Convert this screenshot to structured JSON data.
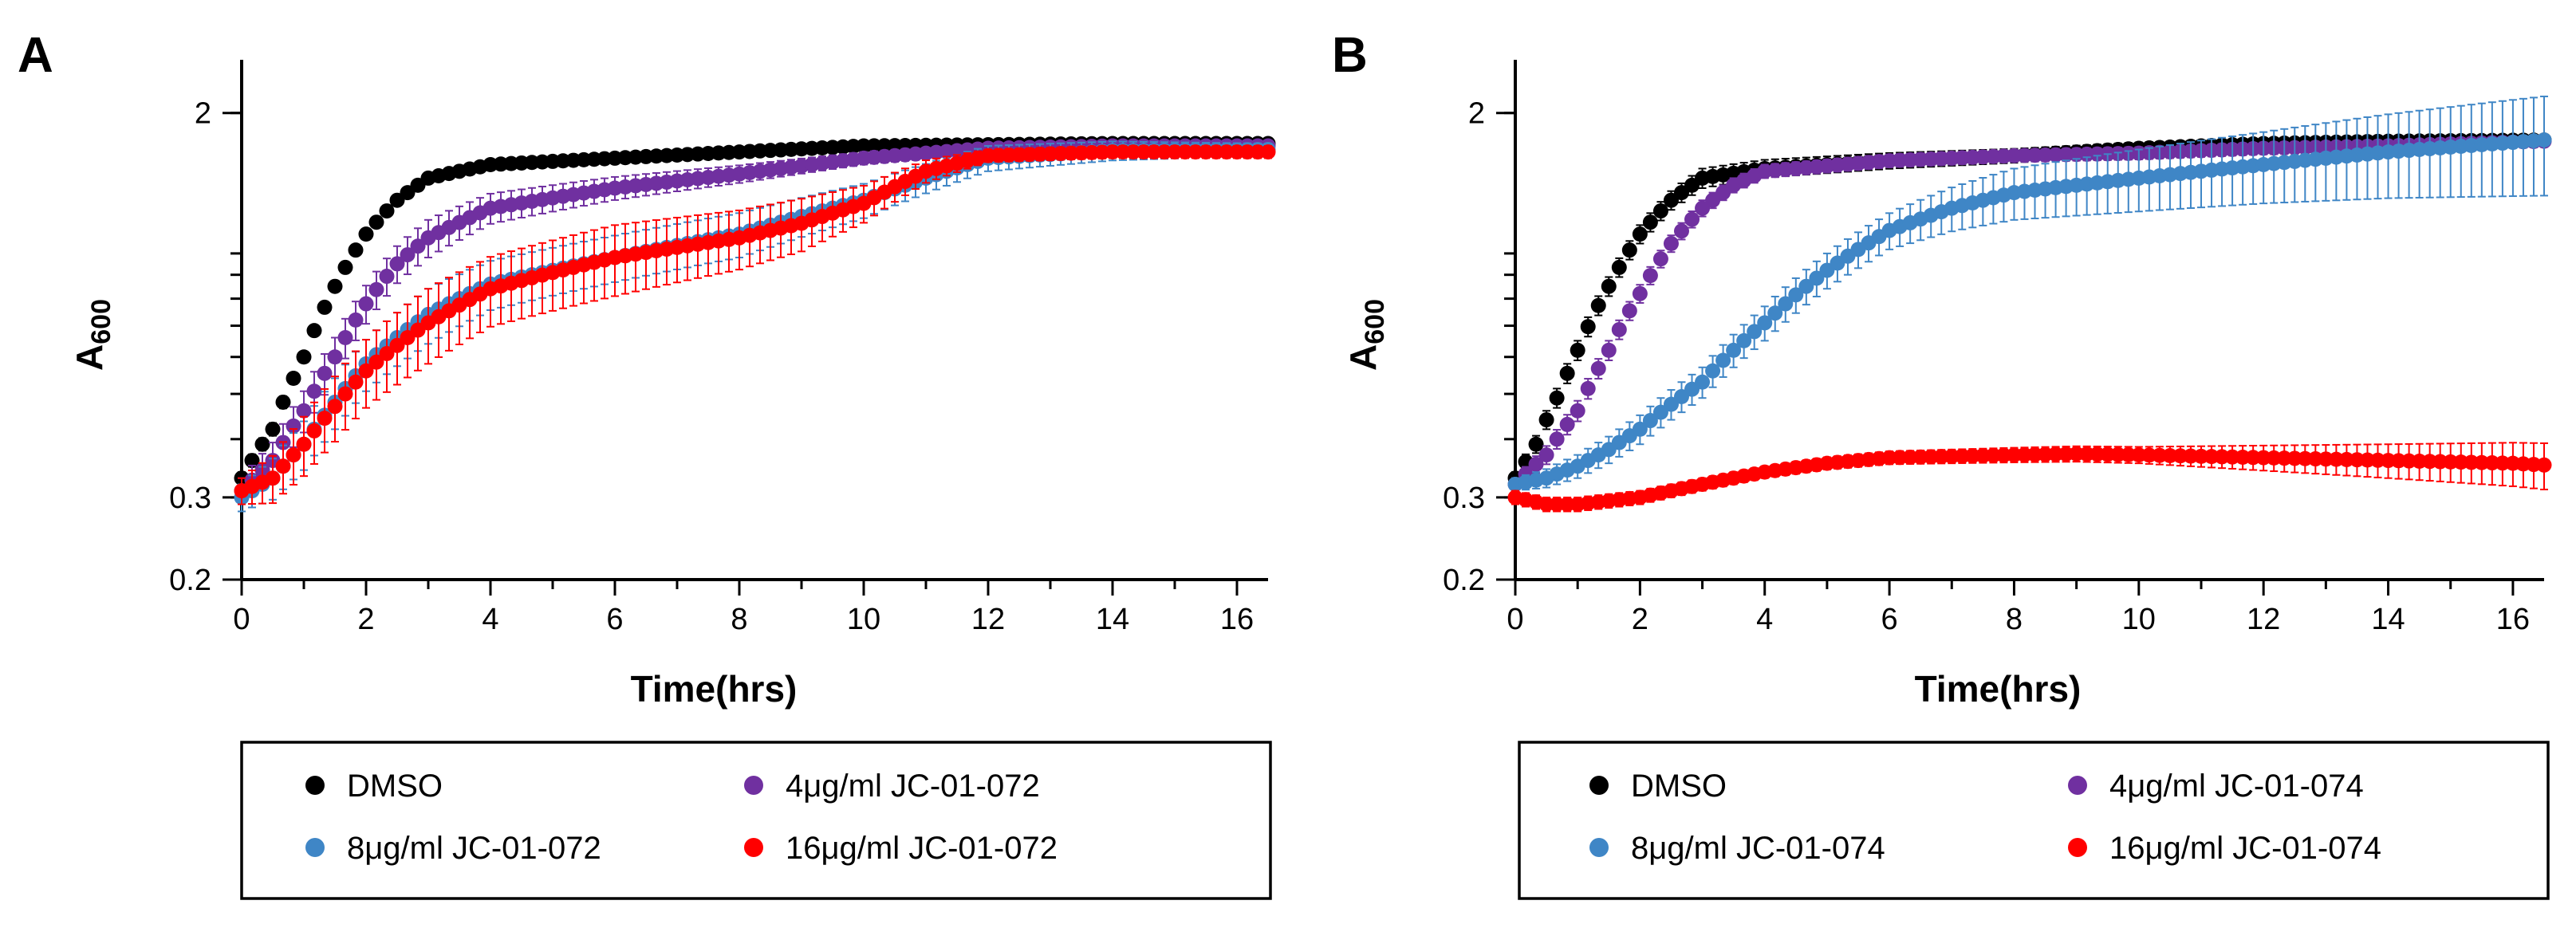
{
  "chart_data": [
    {
      "type": "scatter",
      "panel": "A",
      "ylabel_main": "A",
      "ylabel_sub": "600",
      "xlabel": "Time(hrs)",
      "x_ticks": [
        0,
        2,
        4,
        6,
        8,
        10,
        12,
        14,
        16
      ],
      "xlim": [
        0,
        16.5
      ],
      "yscale": "log",
      "ylim": [
        0.2,
        2.6
      ],
      "y_tick_labels": [
        {
          "value": 0.2,
          "label": "0.2"
        },
        {
          "value": 0.3,
          "label": "0.3"
        },
        {
          "value": 2,
          "label": "2"
        }
      ],
      "series": [
        {
          "name": "DMSO",
          "color": "#000000",
          "points": [
            [
              0,
              0.33
            ],
            [
              0.5,
              0.42
            ],
            [
              1,
              0.6
            ],
            [
              1.5,
              0.85
            ],
            [
              2,
              1.1
            ],
            [
              2.5,
              1.3
            ],
            [
              3,
              1.45
            ],
            [
              4,
              1.55
            ],
            [
              6,
              1.6
            ],
            [
              8,
              1.65
            ],
            [
              10,
              1.7
            ],
            [
              12,
              1.71
            ],
            [
              14,
              1.72
            ],
            [
              16.5,
              1.72
            ]
          ],
          "err": [
            [
              0,
              0.01
            ],
            [
              3,
              0.03
            ],
            [
              16.5,
              0.02
            ]
          ]
        },
        {
          "name": "4μg/ml JC-01-072",
          "color": "#7030A0",
          "points": [
            [
              0,
              0.31
            ],
            [
              0.5,
              0.36
            ],
            [
              1,
              0.46
            ],
            [
              1.5,
              0.6
            ],
            [
              2,
              0.78
            ],
            [
              2.5,
              0.95
            ],
            [
              3,
              1.08
            ],
            [
              4,
              1.25
            ],
            [
              6,
              1.38
            ],
            [
              8,
              1.48
            ],
            [
              10,
              1.6
            ],
            [
              12,
              1.68
            ],
            [
              14,
              1.7
            ],
            [
              16.5,
              1.7
            ]
          ],
          "err": [
            [
              0,
              0.02
            ],
            [
              3,
              0.1
            ],
            [
              10,
              0.05
            ],
            [
              16.5,
              0.03
            ]
          ]
        },
        {
          "name": "8μg/ml JC-01-072",
          "color": "#3F86C6",
          "points": [
            [
              0,
              0.3
            ],
            [
              0.5,
              0.33
            ],
            [
              1,
              0.39
            ],
            [
              1.5,
              0.48
            ],
            [
              2,
              0.58
            ],
            [
              3,
              0.74
            ],
            [
              4,
              0.86
            ],
            [
              6,
              0.98
            ],
            [
              8,
              1.1
            ],
            [
              10,
              1.3
            ],
            [
              11,
              1.45
            ],
            [
              12,
              1.6
            ],
            [
              14,
              1.66
            ],
            [
              16.5,
              1.67
            ]
          ],
          "err": [
            [
              0,
              0.02
            ],
            [
              3,
              0.1
            ],
            [
              8,
              0.12
            ],
            [
              12,
              0.1
            ],
            [
              16.5,
              0.05
            ]
          ]
        },
        {
          "name": "16μg/ml JC-01-072",
          "color": "#FF0000",
          "points": [
            [
              0,
              0.31
            ],
            [
              0.5,
              0.33
            ],
            [
              1,
              0.39
            ],
            [
              1.5,
              0.47
            ],
            [
              2,
              0.56
            ],
            [
              3,
              0.71
            ],
            [
              4,
              0.84
            ],
            [
              6,
              0.98
            ],
            [
              8,
              1.08
            ],
            [
              9,
              1.16
            ],
            [
              10,
              1.28
            ],
            [
              11,
              1.5
            ],
            [
              12,
              1.62
            ],
            [
              14,
              1.65
            ],
            [
              16.5,
              1.65
            ]
          ],
          "err": [
            [
              0,
              0.02
            ],
            [
              3,
              0.13
            ],
            [
              6,
              0.17
            ],
            [
              9,
              0.15
            ],
            [
              12,
              0.05
            ],
            [
              16.5,
              0.05
            ]
          ]
        }
      ],
      "legend": [
        {
          "label": "DMSO",
          "color": "#000000"
        },
        {
          "label": "4μg/ml JC-01-072",
          "color": "#7030A0"
        },
        {
          "label": "8μg/ml JC-01-072",
          "color": "#3F86C6"
        },
        {
          "label": "16μg/ml JC-01-072",
          "color": "#FF0000"
        }
      ]
    },
    {
      "type": "scatter",
      "panel": "B",
      "ylabel_main": "A",
      "ylabel_sub": "600",
      "xlabel": "Time(hrs)",
      "x_ticks": [
        0,
        2,
        4,
        6,
        8,
        10,
        12,
        14,
        16
      ],
      "xlim": [
        0,
        16.5
      ],
      "yscale": "log",
      "ylim": [
        0.2,
        2.6
      ],
      "y_tick_labels": [
        {
          "value": 0.2,
          "label": "0.2"
        },
        {
          "value": 0.3,
          "label": "0.3"
        },
        {
          "value": 2,
          "label": "2"
        }
      ],
      "series": [
        {
          "name": "DMSO",
          "color": "#000000",
          "points": [
            [
              0,
              0.33
            ],
            [
              0.3,
              0.38
            ],
            [
              0.7,
              0.5
            ],
            [
              1,
              0.62
            ],
            [
              1.5,
              0.85
            ],
            [
              2,
              1.1
            ],
            [
              2.5,
              1.3
            ],
            [
              3,
              1.45
            ],
            [
              4,
              1.52
            ],
            [
              6,
              1.58
            ],
            [
              8,
              1.62
            ],
            [
              10,
              1.68
            ],
            [
              12,
              1.72
            ],
            [
              14,
              1.74
            ],
            [
              16.5,
              1.75
            ]
          ],
          "err": [
            [
              0,
              0.01
            ],
            [
              3,
              0.07
            ],
            [
              10,
              0.05
            ],
            [
              16.5,
              0.03
            ]
          ]
        },
        {
          "name": "4μg/ml JC-01-074",
          "color": "#7030A0",
          "points": [
            [
              0,
              0.32
            ],
            [
              0.5,
              0.37
            ],
            [
              1,
              0.46
            ],
            [
              1.5,
              0.62
            ],
            [
              2,
              0.82
            ],
            [
              2.5,
              1.05
            ],
            [
              3,
              1.25
            ],
            [
              3.5,
              1.4
            ],
            [
              4,
              1.5
            ],
            [
              6,
              1.58
            ],
            [
              8,
              1.62
            ],
            [
              10,
              1.64
            ],
            [
              12,
              1.68
            ],
            [
              14,
              1.7
            ],
            [
              16.5,
              1.74
            ]
          ],
          "err": [
            [
              0,
              0.01
            ],
            [
              3,
              0.05
            ],
            [
              16.5,
              0.05
            ]
          ]
        },
        {
          "name": "8μg/ml JC-01-074",
          "color": "#3F86C6",
          "points": [
            [
              0,
              0.32
            ],
            [
              0.5,
              0.33
            ],
            [
              1,
              0.35
            ],
            [
              1.5,
              0.38
            ],
            [
              2,
              0.42
            ],
            [
              3,
              0.53
            ],
            [
              4,
              0.71
            ],
            [
              5,
              0.92
            ],
            [
              6,
              1.12
            ],
            [
              7,
              1.25
            ],
            [
              8,
              1.35
            ],
            [
              10,
              1.45
            ],
            [
              12,
              1.55
            ],
            [
              14,
              1.65
            ],
            [
              16.5,
              1.75
            ]
          ],
          "err": [
            [
              0,
              0.01
            ],
            [
              3,
              0.04
            ],
            [
              6,
              0.1
            ],
            [
              8,
              0.17
            ],
            [
              12,
              0.27
            ],
            [
              16.5,
              0.42
            ]
          ]
        },
        {
          "name": "16μg/ml JC-01-074",
          "color": "#FF0000",
          "points": [
            [
              0,
              0.3
            ],
            [
              0.5,
              0.29
            ],
            [
              1,
              0.29
            ],
            [
              2,
              0.3
            ],
            [
              3,
              0.32
            ],
            [
              4,
              0.34
            ],
            [
              5,
              0.355
            ],
            [
              6,
              0.365
            ],
            [
              8,
              0.37
            ],
            [
              9,
              0.372
            ],
            [
              10,
              0.37
            ],
            [
              12,
              0.365
            ],
            [
              14,
              0.36
            ],
            [
              16,
              0.355
            ],
            [
              16.5,
              0.352
            ]
          ],
          "err": [
            [
              0,
              0.01
            ],
            [
              4,
              0.01
            ],
            [
              10,
              0.015
            ],
            [
              14,
              0.03
            ],
            [
              16.5,
              0.04
            ]
          ]
        }
      ],
      "legend": [
        {
          "label": "DMSO",
          "color": "#000000"
        },
        {
          "label": "4μg/ml JC-01-074",
          "color": "#7030A0"
        },
        {
          "label": "8μg/ml JC-01-074",
          "color": "#3F86C6"
        },
        {
          "label": "16μg/ml JC-01-074",
          "color": "#FF0000"
        }
      ]
    }
  ]
}
